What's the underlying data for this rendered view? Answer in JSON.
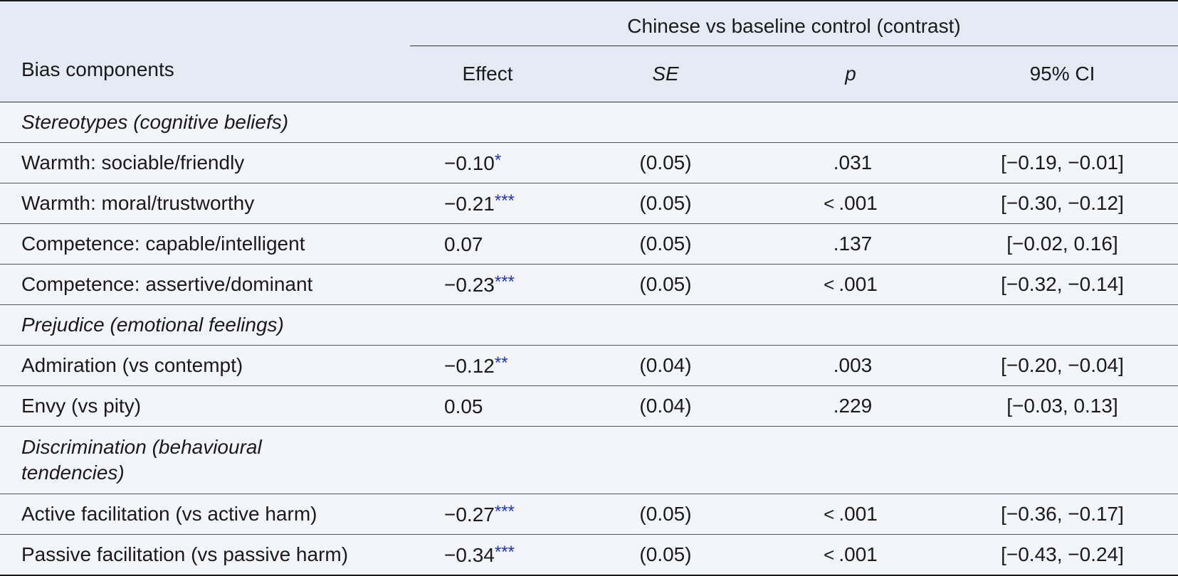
{
  "header": {
    "group_label": "Chinese vs baseline control (contrast)",
    "col_bias": "Bias components",
    "col_effect": "Effect",
    "col_se": "SE",
    "col_p": "p",
    "col_ci": "95% CI"
  },
  "rows": [
    {
      "type": "section",
      "label": "Stereotypes (cognitive beliefs)"
    },
    {
      "type": "data",
      "label": "Warmth: sociable/friendly",
      "effect": "−0.10",
      "stars": "*",
      "se": "(0.05)",
      "p_prefix": "",
      "p": ".031",
      "ci": "[−0.19, −0.01]"
    },
    {
      "type": "data",
      "label": "Warmth: moral/trustworthy",
      "effect": "−0.21",
      "stars": "***",
      "se": "(0.05)",
      "p_prefix": "<",
      "p": ".001",
      "ci": "[−0.30, −0.12]"
    },
    {
      "type": "data",
      "label": "Competence: capable/intelligent",
      "effect": "0.07",
      "stars": "",
      "se": "(0.05)",
      "p_prefix": "",
      "p": ".137",
      "ci": "[−0.02, 0.16]"
    },
    {
      "type": "data",
      "label": "Competence: assertive/dominant",
      "effect": "−0.23",
      "stars": "***",
      "se": "(0.05)",
      "p_prefix": "<",
      "p": ".001",
      "ci": "[−0.32, −0.14]"
    },
    {
      "type": "section",
      "label": "Prejudice (emotional feelings)"
    },
    {
      "type": "data",
      "label": "Admiration (vs contempt)",
      "effect": "−0.12",
      "stars": "**",
      "se": "(0.04)",
      "p_prefix": "",
      "p": ".003",
      "ci": "[−0.20, −0.04]"
    },
    {
      "type": "data",
      "label": "Envy (vs pity)",
      "effect": "0.05",
      "stars": "",
      "se": "(0.04)",
      "p_prefix": "",
      "p": ".229",
      "ci": "[−0.03, 0.13]"
    },
    {
      "type": "section",
      "label": "Discrimination (behavioural tendencies)",
      "label_line1": "Discrimination (behavioural",
      "label_line2": "tendencies)"
    },
    {
      "type": "data",
      "label": "Active facilitation (vs active harm)",
      "effect": "−0.27",
      "stars": "***",
      "se": "(0.05)",
      "p_prefix": "<",
      "p": ".001",
      "ci": "[−0.36, −0.17]"
    },
    {
      "type": "data",
      "label": "Passive facilitation (vs passive harm)",
      "effect": "−0.34",
      "stars": "***",
      "se": "(0.05)",
      "p_prefix": "<",
      "p": ".001",
      "ci": "[−0.43, −0.24]"
    }
  ]
}
